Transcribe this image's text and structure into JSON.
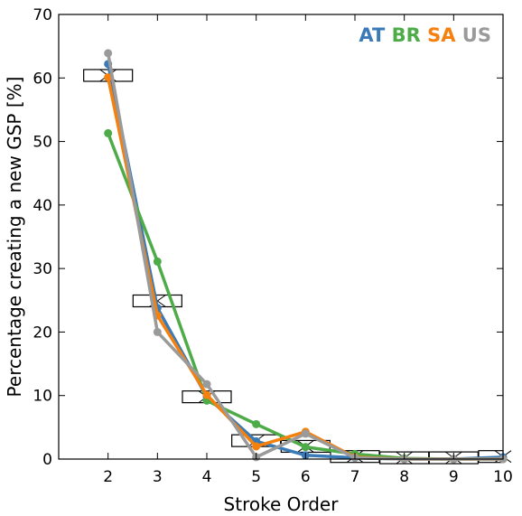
{
  "chart_data": {
    "type": "line",
    "xlabel": "Stroke Order",
    "ylabel": "Percentage creating a new GSP [%]",
    "xlim": [
      1,
      10
    ],
    "ylim": [
      0,
      70
    ],
    "xticks": [
      "2",
      "3",
      "4",
      "5",
      "6",
      "7",
      "8",
      "9",
      "10"
    ],
    "yticks": [
      "0",
      "10",
      "20",
      "30",
      "40",
      "50",
      "60",
      "70"
    ],
    "grid": false,
    "legend_position": "top-right",
    "series": [
      {
        "name": "AT",
        "color": "#3a7ab6",
        "x": [
          2,
          3,
          4,
          5,
          6,
          7,
          8,
          9,
          10
        ],
        "y": [
          62.2,
          23.8,
          9.8,
          2.8,
          0.6,
          0.2,
          0.0,
          0.0,
          0.3
        ]
      },
      {
        "name": "BR",
        "color": "#4dab48",
        "x": [
          2,
          3,
          4,
          5,
          6,
          7,
          8,
          9,
          10
        ],
        "y": [
          51.3,
          31.1,
          9.2,
          5.5,
          1.9,
          0.8,
          0.1,
          0.0,
          0.0
        ]
      },
      {
        "name": "SA",
        "color": "#f5800e",
        "x": [
          2,
          3,
          4,
          5,
          6,
          7,
          8,
          9,
          10
        ],
        "y": [
          60.1,
          22.6,
          10.1,
          2.0,
          4.3,
          0.3,
          0.0,
          0.0,
          0.0
        ]
      },
      {
        "name": "US",
        "color": "#9a9a9a",
        "x": [
          2,
          3,
          4,
          5,
          6,
          7,
          8,
          9,
          10
        ],
        "y": [
          63.9,
          20.0,
          11.8,
          0.3,
          4.0,
          0.2,
          0.0,
          0.0,
          0.0
        ]
      }
    ],
    "reference_boxes": [
      {
        "x": 2,
        "y": 60.4
      },
      {
        "x": 3,
        "y": 24.9
      },
      {
        "x": 4,
        "y": 9.8
      },
      {
        "x": 5,
        "y": 2.9
      },
      {
        "x": 6,
        "y": 2.0
      },
      {
        "x": 7,
        "y": 0.4
      },
      {
        "x": 8,
        "y": 0.2
      },
      {
        "x": 9,
        "y": 0.2
      },
      {
        "x": 10,
        "y": 0.4
      }
    ]
  }
}
